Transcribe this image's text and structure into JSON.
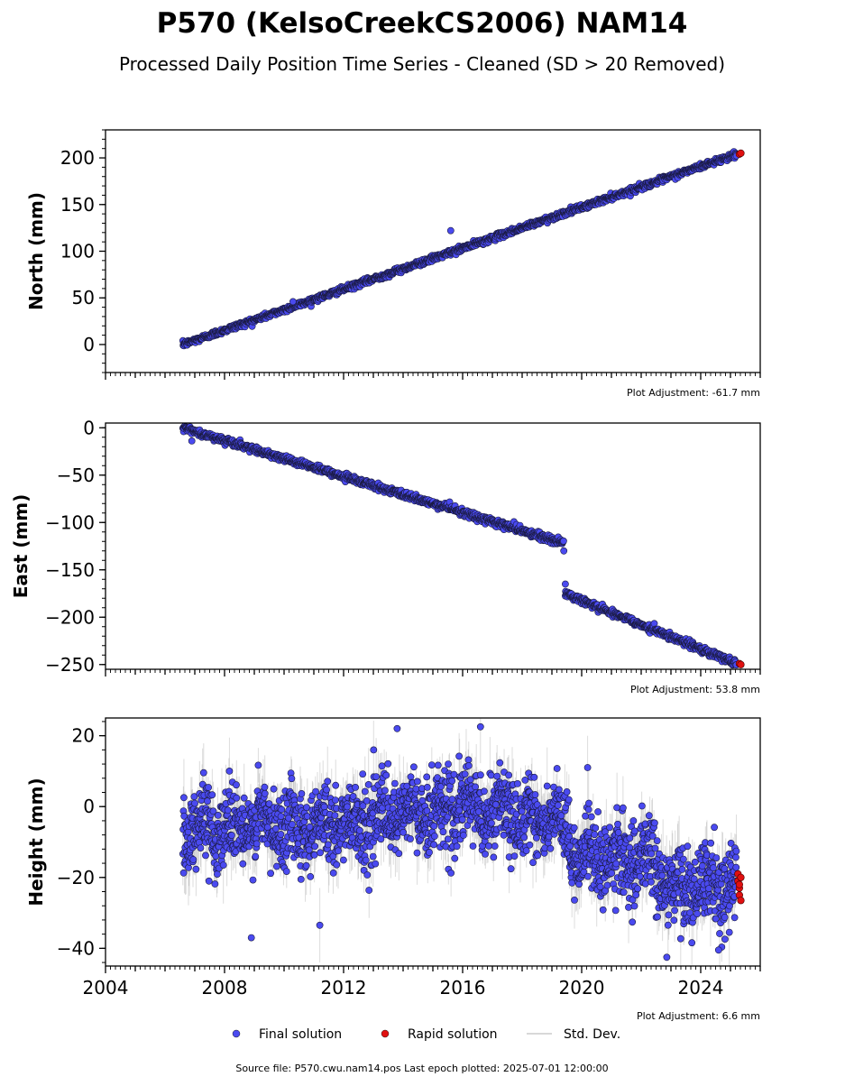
{
  "chart_data": {
    "type": "scatter",
    "title": "P570 (KelsoCreekCS2006) NAM14",
    "subtitle": "Processed Daily Position Time Series - Cleaned (SD > 20 Removed)",
    "x_axis": {
      "range": [
        2004,
        2026
      ],
      "major_ticks": [
        2004,
        2008,
        2012,
        2016,
        2020,
        2024
      ],
      "tick_labels": [
        "2004",
        "2008",
        "2012",
        "2016",
        "2020",
        "2024"
      ]
    },
    "panels": [
      {
        "id": "north",
        "ylabel": "North (mm)",
        "ylim": [
          -30,
          230
        ],
        "yticks": [
          0,
          50,
          100,
          150,
          200
        ],
        "ytick_labels": [
          "0",
          "50",
          "100",
          "150",
          "200"
        ],
        "adjustment": "Plot Adjustment: -61.7 mm",
        "final_solution": {
          "start": [
            2006.6,
            0
          ],
          "end": [
            2025.2,
            204
          ],
          "scatter_mm": 2.5,
          "blips": [
            [
              2015.6,
              122
            ],
            [
              2010.3,
              46
            ]
          ]
        },
        "rapid_solution": [
          [
            2025.3,
            204
          ],
          [
            2025.35,
            205
          ]
        ]
      },
      {
        "id": "east",
        "ylabel": "East (mm)",
        "ylim": [
          -255,
          5
        ],
        "yticks": [
          0,
          -50,
          -100,
          -150,
          -200,
          -250
        ],
        "ytick_labels": [
          "0",
          "−50",
          "−100",
          "−150",
          "−200",
          "−250"
        ],
        "adjustment": "Plot Adjustment: 53.8 mm",
        "final_solution": {
          "segments": [
            {
              "start": [
                2006.6,
                0
              ],
              "end": [
                2019.4,
                -122
              ]
            },
            {
              "start": [
                2019.45,
                -175
              ],
              "end": [
                2025.2,
                -249
              ]
            }
          ],
          "scatter_mm": 3,
          "outliers": [
            [
              2019.45,
              -165
            ],
            [
              2006.9,
              -14
            ],
            [
              2019.4,
              -130
            ]
          ]
        },
        "rapid_solution": [
          [
            2025.3,
            -249
          ],
          [
            2025.35,
            -250
          ]
        ]
      },
      {
        "id": "height",
        "ylabel": "Height (mm)",
        "ylim": [
          -45,
          25
        ],
        "yticks": [
          20,
          0,
          -20,
          -40
        ],
        "ytick_labels": [
          "20",
          "0",
          "−20",
          "−40"
        ],
        "adjustment": "Plot Adjustment: 6.6 mm",
        "final_solution": {
          "trend": [
            [
              2006.6,
              -6
            ],
            [
              2012,
              -5
            ],
            [
              2016,
              0
            ],
            [
              2019,
              -4
            ],
            [
              2020,
              -14
            ],
            [
              2022.5,
              -16
            ],
            [
              2023,
              -24
            ],
            [
              2025.2,
              -22
            ]
          ],
          "scatter_mm": 6,
          "outliers": [
            [
              2008.9,
              -37
            ],
            [
              2011.2,
              -33.5
            ],
            [
              2013.8,
              22
            ],
            [
              2016.6,
              22.5
            ],
            [
              2024.6,
              -40.5
            ],
            [
              2020.2,
              11
            ]
          ]
        },
        "rapid_solution": [
          [
            2025.25,
            -19
          ],
          [
            2025.25,
            -21
          ],
          [
            2025.3,
            -23
          ],
          [
            2025.3,
            -25
          ],
          [
            2025.35,
            -26.5
          ],
          [
            2025.35,
            -20
          ],
          [
            2025.3,
            -22
          ]
        ]
      }
    ],
    "legend": {
      "position": "bottom",
      "items": [
        {
          "label": "Final solution",
          "color": "#4a4af0"
        },
        {
          "label": "Rapid solution",
          "color": "#e01010"
        },
        {
          "label": "Std. Dev.",
          "color": "#cccccc"
        }
      ]
    },
    "footer": "Source file: P570.cwu.nam14.pos  Last epoch plotted: 2025-07-01 12:00:00",
    "colors": {
      "final_fill": "#4a4af0",
      "final_edge": "#1a1a40",
      "rapid_fill": "#e01010",
      "stddev": "#9a9a9a"
    },
    "grid": false
  }
}
